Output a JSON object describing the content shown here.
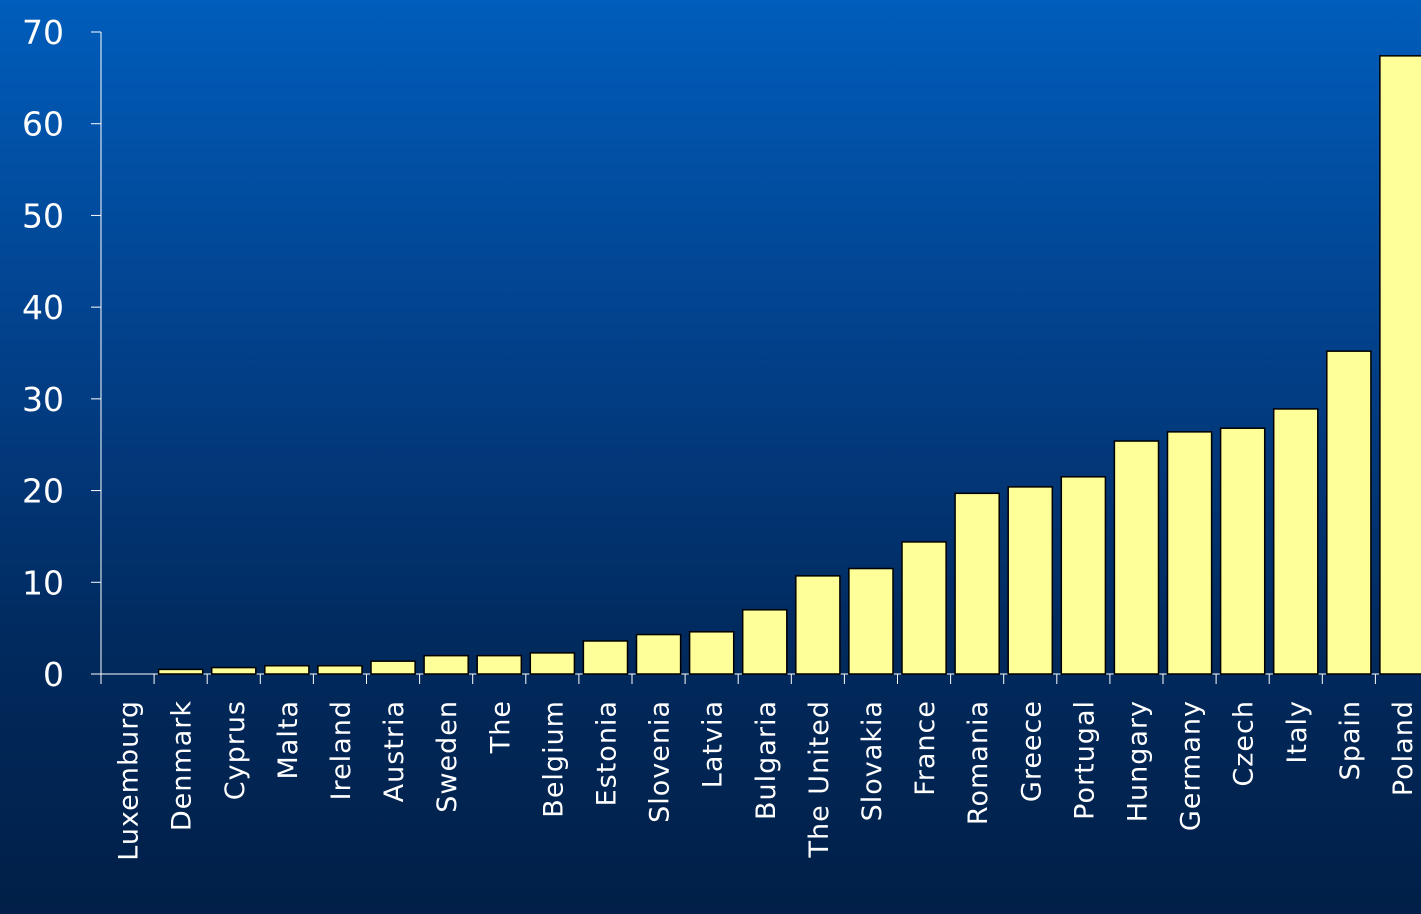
{
  "chart_data": {
    "type": "bar",
    "categories": [
      "Luxemburg",
      "Denmark",
      "Cyprus",
      "Malta",
      "Ireland",
      "Austria",
      "Sweden",
      "The",
      "Belgium",
      "Estonia",
      "Slovenia",
      "Latvia",
      "Bulgaria",
      "The United",
      "Slovakia",
      "France",
      "Romania",
      "Greece",
      "Portugal",
      "Hungary",
      "Germany",
      "Czech",
      "Italy",
      "Spain",
      "Poland"
    ],
    "values": [
      0,
      0.5,
      0.7,
      0.9,
      0.9,
      1.4,
      2.0,
      2.0,
      2.3,
      3.6,
      4.3,
      4.6,
      7.0,
      10.7,
      11.5,
      14.4,
      19.7,
      20.4,
      21.5,
      25.4,
      26.4,
      26.8,
      28.9,
      35.2,
      67.4
    ],
    "yticks": [
      0,
      10,
      20,
      30,
      40,
      50,
      60,
      70
    ],
    "ylim": [
      0,
      70
    ],
    "title": "",
    "xlabel": "",
    "ylabel": "",
    "grid": false,
    "colors": {
      "bar_fill": "#ffff99",
      "bar_stroke": "#000000",
      "axis": "#ffffff",
      "text": "#ffffff"
    }
  }
}
